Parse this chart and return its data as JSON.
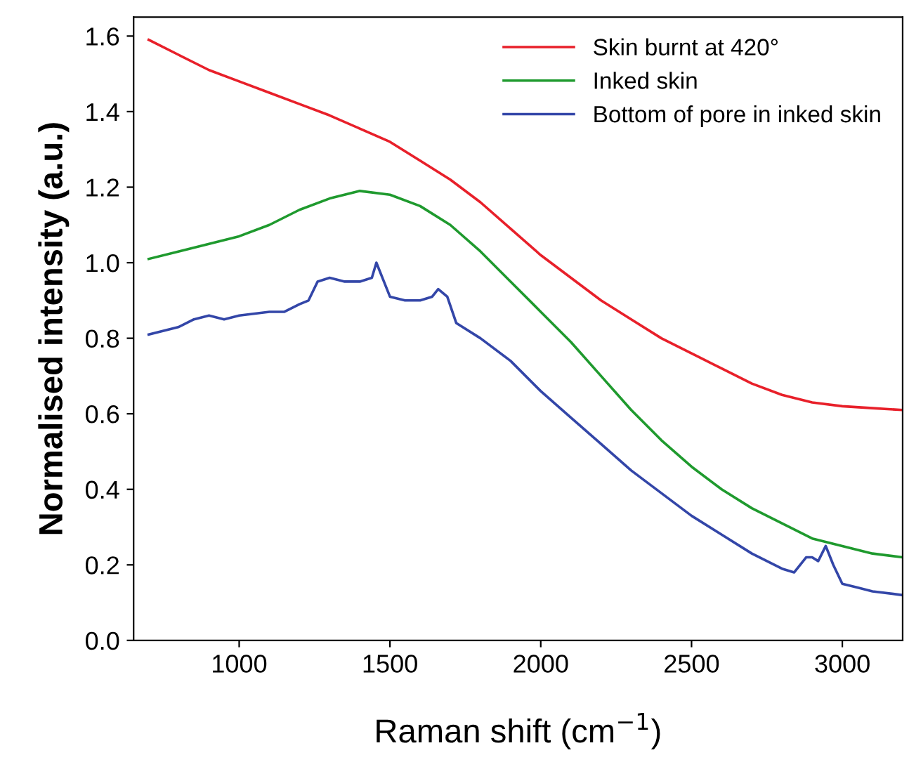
{
  "chart_data": {
    "type": "line",
    "xlabel": "Raman shift (cm$^{−1}$)",
    "ylabel": "Normalised intensity (a.u.)",
    "xlim": [
      650,
      3200
    ],
    "ylim": [
      0,
      1.65
    ],
    "xticks": [
      1000,
      1500,
      2000,
      2500,
      3000
    ],
    "yticks": [
      {
        "value": 0,
        "label": "0.0"
      },
      {
        "value": 0.2,
        "label": "0.2"
      },
      {
        "value": 0.4,
        "label": "0.4"
      },
      {
        "value": 0.6,
        "label": "0.6"
      },
      {
        "value": 0.8,
        "label": "0.8"
      },
      {
        "value": 1.0,
        "label": "1.0"
      },
      {
        "value": 1.2,
        "label": "1.2"
      },
      {
        "value": 1.4,
        "label": "1.4"
      },
      {
        "value": 1.6,
        "label": "1.6"
      }
    ],
    "grid": false,
    "legend": "top right",
    "marker": "none",
    "line_style": "solid",
    "series": [
      {
        "name": "Skin burnt at 420°",
        "color": "#e8202a",
        "x": [
          700,
          800,
          900,
          1000,
          1100,
          1200,
          1300,
          1400,
          1500,
          1600,
          1700,
          1800,
          1900,
          2000,
          2100,
          2200,
          2300,
          2400,
          2500,
          2600,
          2700,
          2800,
          2900,
          3000,
          3100,
          3200
        ],
        "values": [
          1.59,
          1.55,
          1.51,
          1.48,
          1.45,
          1.42,
          1.39,
          1.355,
          1.32,
          1.27,
          1.22,
          1.16,
          1.09,
          1.02,
          0.96,
          0.9,
          0.85,
          0.8,
          0.76,
          0.72,
          0.68,
          0.65,
          0.63,
          0.62,
          0.615,
          0.61
        ]
      },
      {
        "name": "Inked skin",
        "color": "#1f9a2e",
        "x": [
          700,
          800,
          900,
          1000,
          1100,
          1200,
          1300,
          1400,
          1500,
          1600,
          1700,
          1800,
          1900,
          2000,
          2100,
          2200,
          2300,
          2400,
          2500,
          2600,
          2700,
          2800,
          2900,
          3000,
          3100,
          3200
        ],
        "values": [
          1.01,
          1.03,
          1.05,
          1.07,
          1.1,
          1.14,
          1.17,
          1.19,
          1.18,
          1.15,
          1.1,
          1.03,
          0.95,
          0.87,
          0.79,
          0.7,
          0.61,
          0.53,
          0.46,
          0.4,
          0.35,
          0.31,
          0.27,
          0.25,
          0.23,
          0.22
        ]
      },
      {
        "name": "Bottom of pore in inked skin",
        "color": "#3346a8",
        "x": [
          700,
          800,
          850,
          900,
          950,
          1000,
          1100,
          1150,
          1200,
          1230,
          1260,
          1300,
          1350,
          1400,
          1440,
          1455,
          1480,
          1500,
          1550,
          1600,
          1640,
          1660,
          1690,
          1720,
          1800,
          1900,
          2000,
          2100,
          2200,
          2300,
          2400,
          2500,
          2600,
          2700,
          2800,
          2840,
          2880,
          2900,
          2920,
          2945,
          2970,
          3000,
          3050,
          3100,
          3200
        ],
        "values": [
          0.81,
          0.83,
          0.85,
          0.86,
          0.85,
          0.86,
          0.87,
          0.87,
          0.89,
          0.9,
          0.95,
          0.96,
          0.95,
          0.95,
          0.96,
          1.0,
          0.95,
          0.91,
          0.9,
          0.9,
          0.91,
          0.93,
          0.91,
          0.84,
          0.8,
          0.74,
          0.66,
          0.59,
          0.52,
          0.45,
          0.39,
          0.33,
          0.28,
          0.23,
          0.19,
          0.18,
          0.22,
          0.22,
          0.21,
          0.25,
          0.2,
          0.15,
          0.14,
          0.13,
          0.12
        ]
      }
    ]
  }
}
